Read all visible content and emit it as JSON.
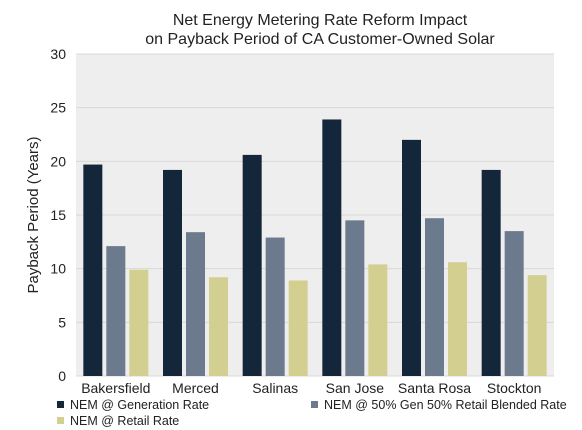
{
  "chart_data": {
    "type": "bar",
    "title": [
      "Net Energy Metering Rate Reform Impact",
      "on Payback Period of CA Customer-Owned Solar"
    ],
    "ylabel": "Payback Period (Years)",
    "xlabel": "",
    "ylim": [
      0,
      30
    ],
    "yticks": [
      "0",
      "5",
      "10",
      "15",
      "20",
      "25",
      "30"
    ],
    "grid": true,
    "legend_position": "bottom",
    "categories": [
      "Bakersfield",
      "Merced",
      "Salinas",
      "San Jose",
      "Santa Rosa",
      "Stockton"
    ],
    "series": [
      {
        "name": "NEM @ Generation Rate",
        "color": "#14263a",
        "values": [
          19.7,
          19.2,
          20.6,
          23.9,
          22.0,
          19.2
        ]
      },
      {
        "name": "NEM @ 50% Gen 50% Retail Blended Rate",
        "color": "#6b7a8c",
        "values": [
          12.1,
          13.4,
          12.9,
          14.5,
          14.7,
          13.5
        ]
      },
      {
        "name": "NEM @ Retail Rate",
        "color": "#d3cf91",
        "values": [
          9.9,
          9.2,
          8.9,
          10.4,
          10.6,
          9.4
        ]
      }
    ]
  }
}
